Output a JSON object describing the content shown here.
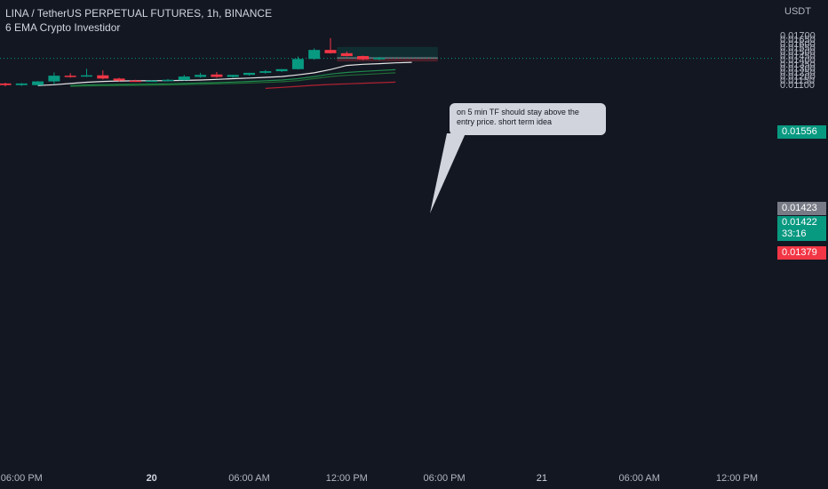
{
  "header": {
    "title": "LINA / TetherUS PERPETUAL FUTURES, 1h, BINANCE",
    "indicator": "6 EMA Crypto Investidor"
  },
  "callout": {
    "text": "on 5 min TF should stay above the entry price. short term idea"
  },
  "price_tags": {
    "target": {
      "value": "0.01556",
      "color": "#089981"
    },
    "entry": {
      "value": "0.01423",
      "color": "#787b86"
    },
    "current": {
      "value": "0.01422",
      "countdown": "33:16",
      "color": "#089981"
    },
    "stop": {
      "value": "0.01379",
      "color": "#f23645"
    }
  },
  "colors": {
    "background": "#131722",
    "up": "#089981",
    "down": "#f23645",
    "axis_text": "#b2b5be"
  },
  "chart_data": {
    "type": "candlestick",
    "y_unit": "USDT",
    "y_ticks": [
      "0.01700",
      "0.01650",
      "0.01600",
      "0.01550",
      "0.01500",
      "0.01450",
      "0.01400",
      "0.01350",
      "0.01300",
      "0.01250",
      "0.01200",
      "0.01150",
      "0.01100"
    ],
    "x_ticks": [
      "06:00 PM",
      "20",
      "06:00 AM",
      "12:00 PM",
      "06:00 PM",
      "21",
      "06:00 AM",
      "12:00 PM"
    ],
    "x_tick_index": [
      1,
      9,
      15,
      21,
      27,
      33,
      39,
      45
    ],
    "candles": [
      {
        "o": 0.0111,
        "h": 0.0112,
        "l": 0.01075,
        "c": 0.0109
      },
      {
        "o": 0.0109,
        "h": 0.01115,
        "l": 0.0108,
        "c": 0.0111
      },
      {
        "o": 0.0109,
        "h": 0.0114,
        "l": 0.0108,
        "c": 0.01135
      },
      {
        "o": 0.01135,
        "h": 0.01245,
        "l": 0.011,
        "c": 0.01205
      },
      {
        "o": 0.01205,
        "h": 0.01235,
        "l": 0.0118,
        "c": 0.01195
      },
      {
        "o": 0.012,
        "h": 0.0129,
        "l": 0.0119,
        "c": 0.0121
      },
      {
        "o": 0.0121,
        "h": 0.0127,
        "l": 0.0116,
        "c": 0.0117
      },
      {
        "o": 0.0117,
        "h": 0.0118,
        "l": 0.01135,
        "c": 0.01145
      },
      {
        "o": 0.01145,
        "h": 0.01155,
        "l": 0.01135,
        "c": 0.0114
      },
      {
        "o": 0.0114,
        "h": 0.0115,
        "l": 0.01135,
        "c": 0.01145
      },
      {
        "o": 0.0114,
        "h": 0.01165,
        "l": 0.01135,
        "c": 0.01155
      },
      {
        "o": 0.0115,
        "h": 0.01215,
        "l": 0.01145,
        "c": 0.01195
      },
      {
        "o": 0.0119,
        "h": 0.0124,
        "l": 0.0118,
        "c": 0.01215
      },
      {
        "o": 0.0122,
        "h": 0.0125,
        "l": 0.0118,
        "c": 0.0119
      },
      {
        "o": 0.0119,
        "h": 0.01215,
        "l": 0.0118,
        "c": 0.01215
      },
      {
        "o": 0.01215,
        "h": 0.0124,
        "l": 0.01205,
        "c": 0.0124
      },
      {
        "o": 0.0124,
        "h": 0.01275,
        "l": 0.0123,
        "c": 0.0126
      },
      {
        "o": 0.0126,
        "h": 0.01285,
        "l": 0.0125,
        "c": 0.01285
      },
      {
        "o": 0.01285,
        "h": 0.0144,
        "l": 0.0128,
        "c": 0.0141
      },
      {
        "o": 0.0141,
        "h": 0.0154,
        "l": 0.014,
        "c": 0.0152
      },
      {
        "o": 0.0152,
        "h": 0.01665,
        "l": 0.01475,
        "c": 0.0148
      },
      {
        "o": 0.0148,
        "h": 0.015,
        "l": 0.0144,
        "c": 0.01445
      },
      {
        "o": 0.01445,
        "h": 0.0145,
        "l": 0.01395,
        "c": 0.01405
      },
      {
        "o": 0.01405,
        "h": 0.01435,
        "l": 0.01395,
        "c": 0.01425
      }
    ],
    "emas": [
      {
        "color": "#e6e6e6",
        "start": 2,
        "values": [
          0.01085,
          0.01095,
          0.0111,
          0.01125,
          0.01135,
          0.0114,
          0.01142,
          0.01143,
          0.01145,
          0.01148,
          0.01152,
          0.0116,
          0.01168,
          0.01176,
          0.01185,
          0.01195,
          0.01215,
          0.0124,
          0.0128,
          0.0133,
          0.01345,
          0.01352,
          0.01362,
          0.01368
        ]
      },
      {
        "color": "#1f8a4c",
        "start": 4,
        "values": [
          0.01085,
          0.01092,
          0.01096,
          0.01098,
          0.011,
          0.01102,
          0.01105,
          0.0111,
          0.01115,
          0.0112,
          0.01127,
          0.01135,
          0.01143,
          0.01152,
          0.01168,
          0.01195,
          0.01225,
          0.01245,
          0.01258,
          0.01268,
          0.01278
        ]
      },
      {
        "color": "#1e6b34",
        "start": 4,
        "values": [
          0.01075,
          0.0108,
          0.01083,
          0.01085,
          0.01087,
          0.01089,
          0.01092,
          0.01096,
          0.011,
          0.01105,
          0.0111,
          0.01116,
          0.01123,
          0.0113,
          0.01145,
          0.0117,
          0.01195,
          0.0121,
          0.0122,
          0.0123,
          0.0124
        ]
      },
      {
        "color": "#b02232",
        "start": 16,
        "values": [
          0.0105,
          0.01062,
          0.01075,
          0.01088,
          0.01098,
          0.01105,
          0.01113,
          0.0112,
          0.01126
        ]
      }
    ],
    "position": {
      "entry": 0.01423,
      "target": 0.01556,
      "stop": 0.01379,
      "from_index": 20.4,
      "to_index": 26.6
    }
  }
}
